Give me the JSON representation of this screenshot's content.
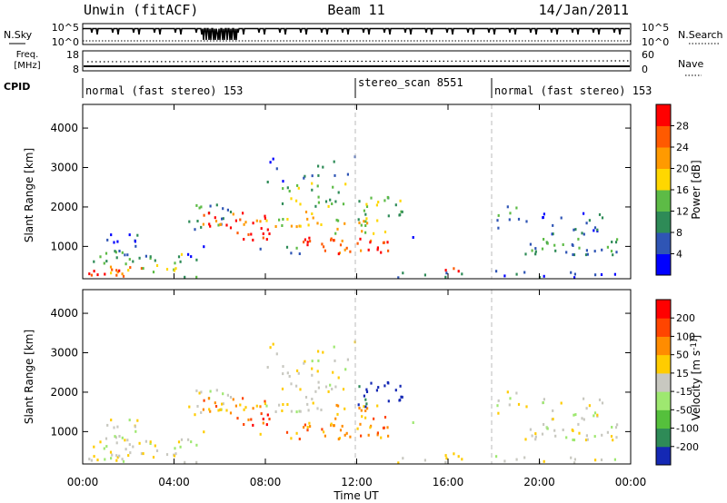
{
  "header": {
    "title": "Unwin (fitACF)",
    "beam": "Beam 11",
    "date": "14/Jan/2011"
  },
  "status_panels": {
    "nsky": {
      "label": "N.Sky",
      "ticks": [
        "10^5",
        "10^0"
      ],
      "right_label": "N.Search",
      "right_ticks": [
        "10^5",
        "10^0"
      ]
    },
    "freq": {
      "label_line1": "Freq.",
      "label_line2": "[MHz]",
      "ticks": [
        "18",
        "8"
      ],
      "right_label": "Nave",
      "right_ticks": [
        "60",
        "0"
      ]
    },
    "cpid": {
      "label": "CPID",
      "segments": [
        {
          "text": "normal (fast stereo) 153",
          "start_hour": 0
        },
        {
          "text": "stereo_scan 8551",
          "start_hour": 12
        },
        {
          "text": "normal (fast stereo) 153",
          "start_hour": 18
        }
      ]
    }
  },
  "chart_data": [
    {
      "type": "heatmap",
      "quantity": "Power",
      "ylabel": "Slant Range [km]",
      "yticks": [
        1000,
        2000,
        3000,
        4000
      ],
      "ylim": [
        180,
        4600
      ],
      "xlim_hours": [
        0,
        24
      ],
      "colorbar": {
        "label": "Power [dB]",
        "tick_labels": [
          "4",
          "8",
          "12",
          "16",
          "20",
          "24",
          "28"
        ],
        "colors": [
          "#0000ff",
          "#2f55b5",
          "#2e8b57",
          "#5dbb46",
          "#ffd700",
          "#ff9a00",
          "#ff5a00",
          "#ff0000"
        ]
      }
    },
    {
      "type": "heatmap",
      "quantity": "Velocity",
      "ylabel": "Slant Range [km]",
      "yticks": [
        1000,
        2000,
        3000,
        4000
      ],
      "ylim": [
        180,
        4600
      ],
      "xlim_hours": [
        0,
        24
      ],
      "colorbar": {
        "label": "Velocity [m s^-1]",
        "tick_labels": [
          "200",
          "100",
          "50",
          "15",
          "-15",
          "-50",
          "-100",
          "-200"
        ],
        "colors": [
          "#1428b4",
          "#2e8b57",
          "#55c03c",
          "#9ee870",
          "#c8c8c0",
          "#ffcc00",
          "#ff8c00",
          "#ff4500",
          "#ff0000"
        ]
      }
    }
  ],
  "x_axis": {
    "label": "Time UT",
    "tick_labels": [
      "00:00",
      "04:00",
      "08:00",
      "12:00",
      "16:00",
      "20:00",
      "00:00"
    ]
  }
}
